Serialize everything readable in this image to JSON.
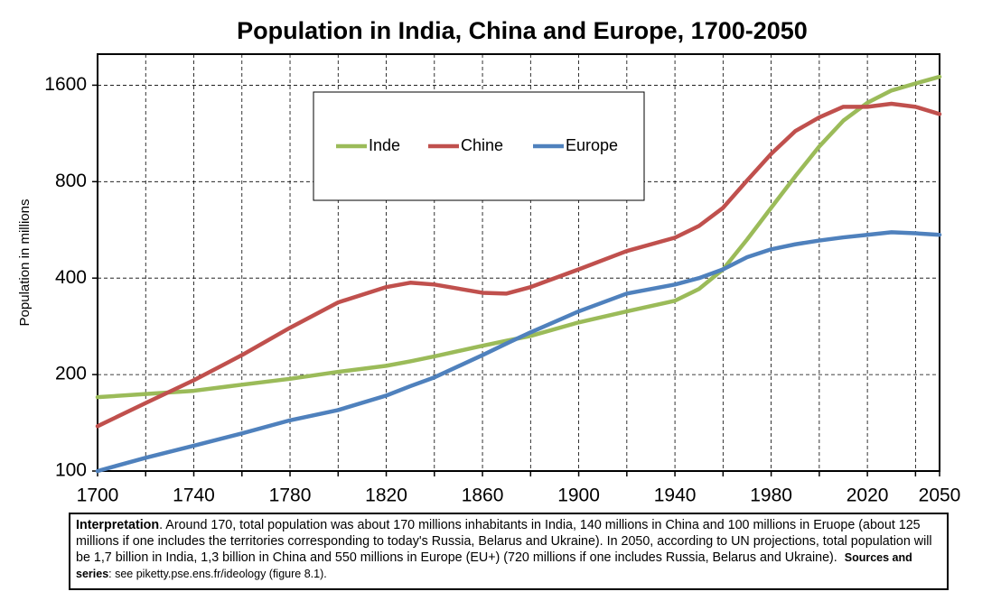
{
  "chart_data": {
    "type": "line",
    "title": "Population in India, China and Europe, 1700-2050",
    "y_label": "Population in millions",
    "x": [
      1700,
      1720,
      1740,
      1760,
      1780,
      1800,
      1820,
      1830,
      1840,
      1860,
      1870,
      1880,
      1900,
      1920,
      1940,
      1950,
      1960,
      1970,
      1980,
      1990,
      2000,
      2010,
      2020,
      2030,
      2040,
      2050
    ],
    "series": [
      {
        "name": "Inde",
        "color": "#9bbb59",
        "values": [
          170,
          174,
          178,
          186,
          194,
          204,
          213,
          220,
          228,
          246,
          255,
          264,
          291,
          315,
          340,
          370,
          426,
          528,
          663,
          831,
          1030,
          1240,
          1410,
          1540,
          1620,
          1700
        ]
      },
      {
        "name": "Chine",
        "color": "#c0504d",
        "values": [
          138,
          163,
          192,
          230,
          280,
          336,
          375,
          387,
          382,
          360,
          358,
          375,
          426,
          486,
          535,
          582,
          663,
          807,
          977,
          1150,
          1270,
          1370,
          1370,
          1400,
          1370,
          1300
        ]
      },
      {
        "name": "Europe",
        "color": "#4f81bd",
        "values": [
          100,
          110,
          120,
          131,
          144,
          155,
          172,
          184,
          196,
          230,
          250,
          271,
          315,
          358,
          382,
          400,
          426,
          465,
          492,
          510,
          524,
          536,
          546,
          556,
          552,
          546
        ]
      }
    ],
    "xlim": [
      1700,
      2050
    ],
    "xticks": [
      1700,
      1740,
      1780,
      1820,
      1860,
      1900,
      1940,
      1980,
      2020,
      2050
    ],
    "xminor_ticks": [
      1720,
      1760,
      1800,
      1840,
      1880,
      1920,
      1960,
      2000,
      2040
    ],
    "ylim": [
      100,
      2000
    ],
    "yticks": [
      100,
      200,
      400,
      800,
      1600
    ],
    "ylog": true,
    "grid": true,
    "note": {
      "heading": "Interpretation",
      "text": ". Around 170, total population was about 170 millions inhabitants in India, 140 millions in China and 100 millions in Eruope (about 125 millions if one includes the territories corresponding to today's Russia, Belarus and Ukraine). In 2050, according to UN projections, total population will be 1,7 billion in India, 1,3 billion in China and 550 millions in Europe (EU+) (720 millions if one includes Russia, Belarus and Ukraine).",
      "sources_heading": "Sources and series",
      "sources_text": ": see piketty.pse.ens.fr/ideology (figure 8.1)."
    }
  }
}
